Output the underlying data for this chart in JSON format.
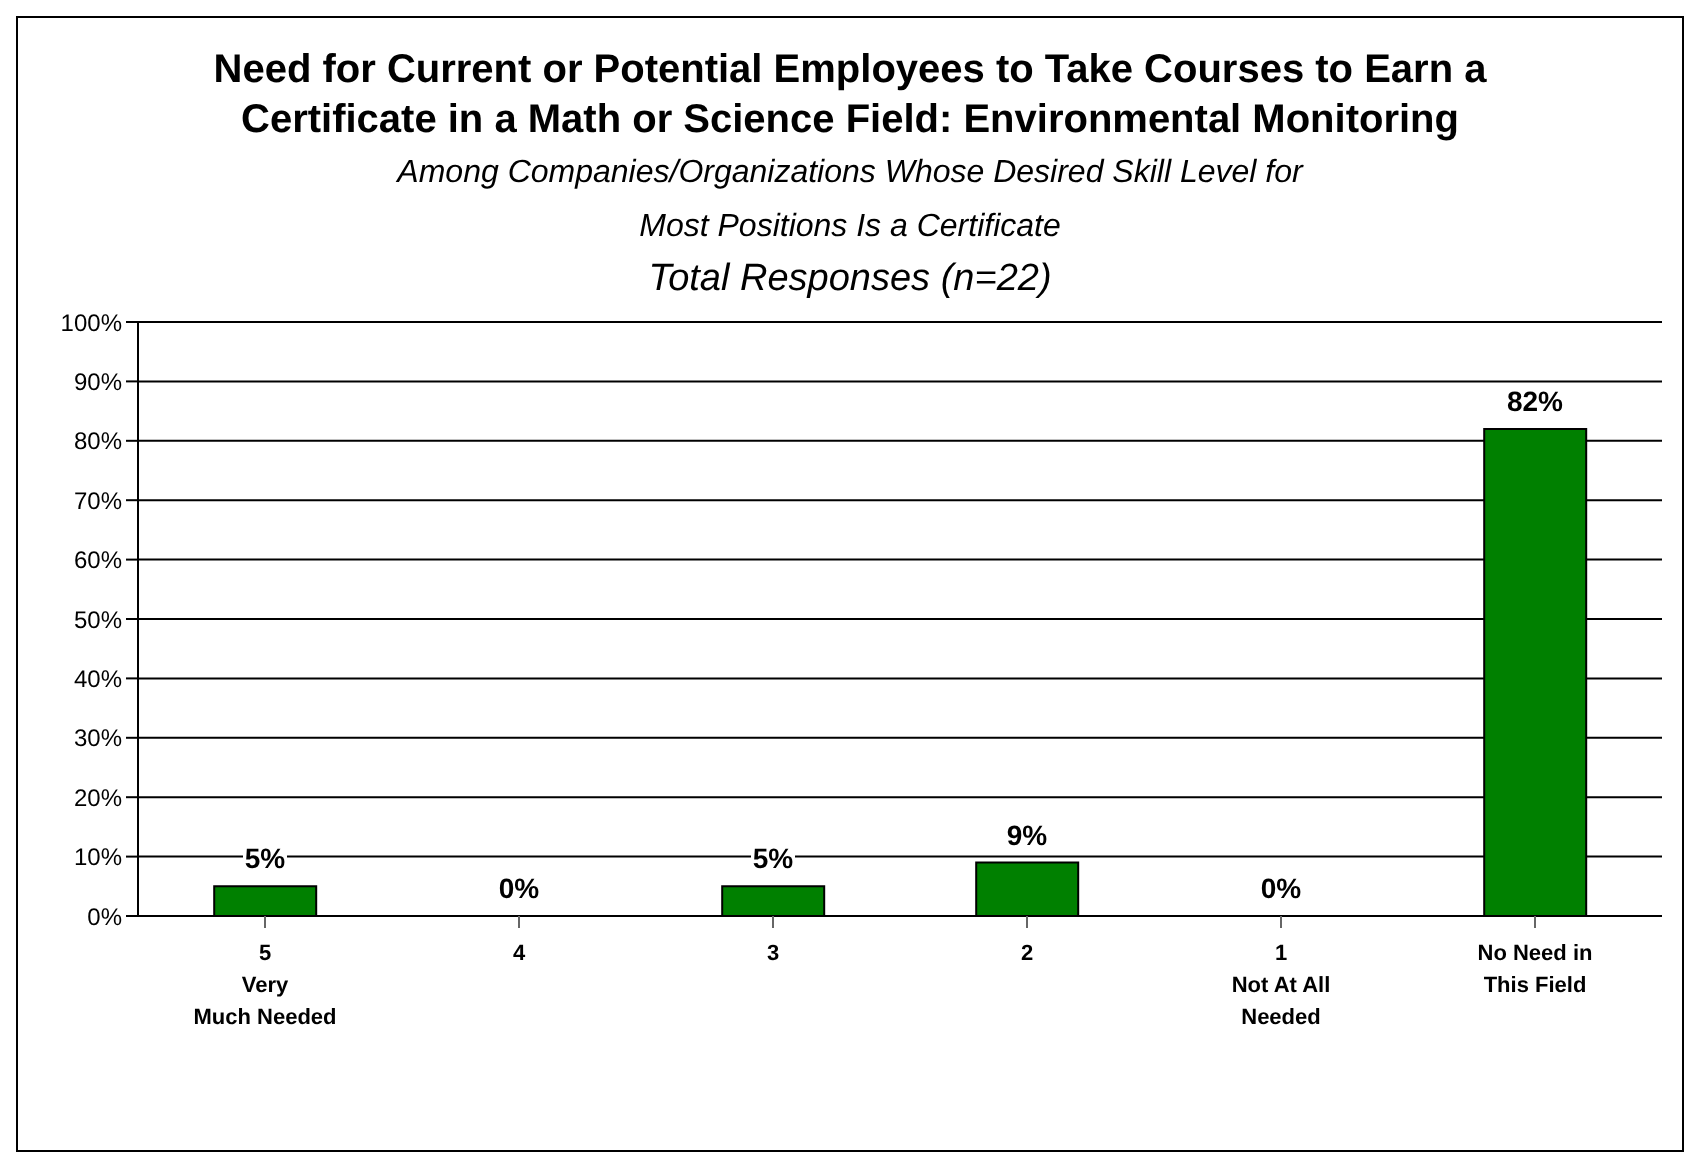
{
  "chart_data": {
    "type": "bar",
    "title": "Need for Current or Potential Employees to Take Courses to Earn a Certificate in a Math or Science Field: Environmental Monitoring",
    "subtitle": "Among Companies/Organizations Whose Desired Skill Level for Most Positions Is a Certificate",
    "annotations": [
      "Total Responses (n=22)"
    ],
    "categories": [
      "5\nVery\nMuch Needed",
      "4",
      "3",
      "2",
      "1\nNot At All\nNeeded",
      "No Need in\nThis Field"
    ],
    "values": [
      5,
      0,
      5,
      9,
      0,
      82
    ],
    "value_labels": [
      "5%",
      "0%",
      "5%",
      "9%",
      "0%",
      "82%"
    ],
    "color": "#008000",
    "ylim": [
      0,
      100
    ],
    "yticks": [
      {
        "value": 0,
        "label": "0%"
      },
      {
        "value": 10,
        "label": "10%"
      },
      {
        "value": 20,
        "label": "20%"
      },
      {
        "value": 30,
        "label": "30%"
      },
      {
        "value": 40,
        "label": "40%"
      },
      {
        "value": 50,
        "label": "50%"
      },
      {
        "value": 60,
        "label": "60%"
      },
      {
        "value": 70,
        "label": "70%"
      },
      {
        "value": 80,
        "label": "80%"
      },
      {
        "value": 90,
        "label": "90%"
      },
      {
        "value": 100,
        "label": "100%"
      }
    ],
    "grid": "y",
    "legend": false
  }
}
